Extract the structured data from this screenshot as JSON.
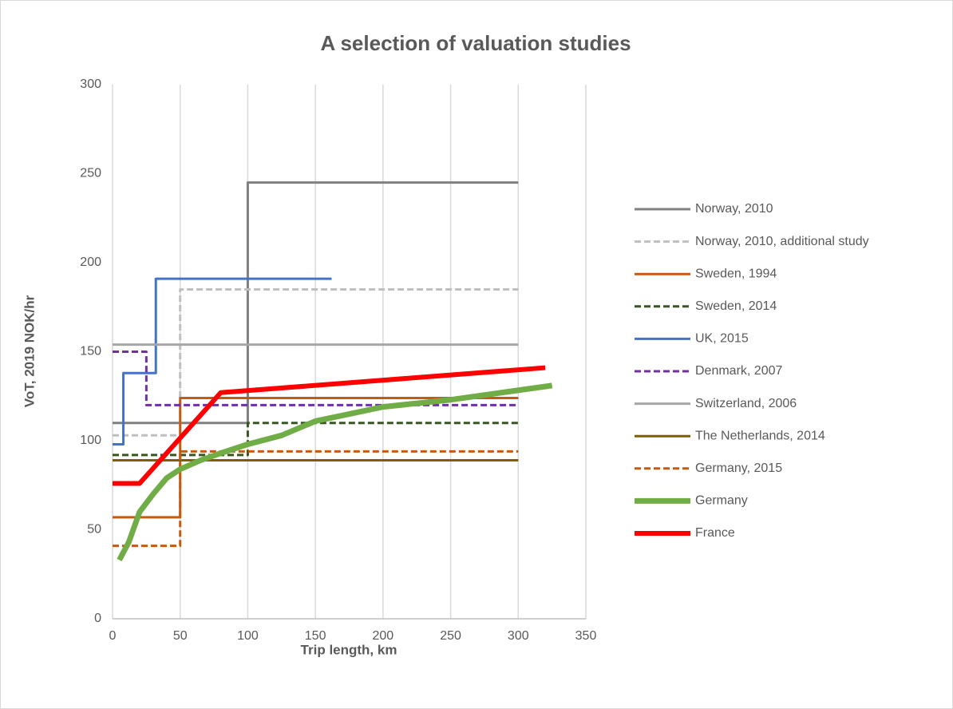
{
  "chart_data": {
    "type": "line",
    "title": "A selection of valuation studies",
    "x_label": "Trip length, km",
    "y_label": "VoT, 2019 NOK/hr",
    "xlim": [
      0,
      350
    ],
    "xticks": [
      0,
      50,
      100,
      150,
      200,
      250,
      300,
      350
    ],
    "ylim": [
      0,
      300
    ],
    "yticks": [
      0,
      50,
      100,
      150,
      200,
      250,
      300
    ],
    "grid": "x",
    "legend": "right",
    "series": [
      {
        "name": "Norway, 2010",
        "color": "#808080",
        "dash": "solid",
        "width": 3,
        "x": [
          0,
          100,
          100,
          300
        ],
        "values": [
          110,
          110,
          245,
          245
        ]
      },
      {
        "name": "Norway, 2010, additional study",
        "color": "#bfbfbf",
        "dash": "dashed",
        "width": 3,
        "x": [
          0,
          50,
          50,
          300
        ],
        "values": [
          103,
          103,
          185,
          185
        ]
      },
      {
        "name": "Sweden, 1994",
        "color": "#c55a11",
        "dash": "solid",
        "width": 3,
        "x": [
          0,
          50,
          50,
          300
        ],
        "values": [
          57,
          57,
          124,
          124
        ]
      },
      {
        "name": "Sweden, 2014",
        "color": "#375623",
        "dash": "dashed",
        "width": 3,
        "x": [
          0,
          100,
          100,
          300
        ],
        "values": [
          92,
          92,
          110,
          110
        ]
      },
      {
        "name": "UK, 2015",
        "color": "#4472c4",
        "dash": "solid",
        "width": 3,
        "x": [
          0,
          8,
          8,
          32,
          32,
          162
        ],
        "values": [
          98,
          98,
          138,
          138,
          191,
          191
        ]
      },
      {
        "name": "Denmark, 2007",
        "color": "#7030a0",
        "dash": "dashed",
        "width": 3,
        "x": [
          0,
          25,
          25,
          300
        ],
        "values": [
          150,
          150,
          120,
          120
        ]
      },
      {
        "name": "Switzerland, 2006",
        "color": "#a6a6a6",
        "dash": "solid",
        "width": 3,
        "x": [
          0,
          300
        ],
        "values": [
          154,
          154
        ]
      },
      {
        "name": "The Netherlands, 2014",
        "color": "#7f6000",
        "dash": "solid",
        "width": 3,
        "x": [
          0,
          300
        ],
        "values": [
          89,
          89
        ]
      },
      {
        "name": "Germany, 2015",
        "color": "#c55a11",
        "dash": "dashed",
        "width": 3,
        "x": [
          0,
          50,
          50,
          300
        ],
        "values": [
          41,
          41,
          94,
          94
        ]
      },
      {
        "name": "Germany",
        "color": "#70ad47",
        "dash": "solid",
        "width": 7,
        "x": [
          5,
          12,
          20,
          30,
          40,
          50,
          65,
          80,
          100,
          125,
          150,
          175,
          200,
          250,
          325
        ],
        "values": [
          33,
          43,
          60,
          70,
          79,
          84,
          89,
          93,
          98,
          103,
          111,
          115,
          119,
          123,
          131
        ]
      },
      {
        "name": "France",
        "color": "#ff0000",
        "dash": "solid",
        "width": 6,
        "x": [
          0,
          20,
          80,
          320
        ],
        "values": [
          76,
          76,
          127,
          141
        ]
      }
    ]
  }
}
